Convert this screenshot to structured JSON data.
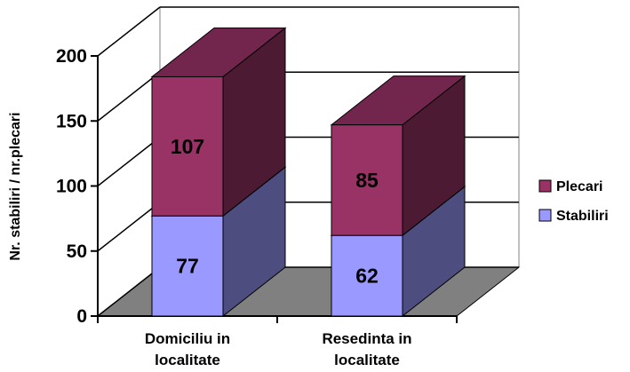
{
  "chart_data": {
    "type": "bar",
    "stacked": true,
    "three_d": true,
    "categories": [
      "Domiciliu in localitate",
      "Resedinta in localitate"
    ],
    "category_lines": [
      [
        "Domiciliu in",
        "localitate"
      ],
      [
        "Resedinta in",
        "localitate"
      ]
    ],
    "series": [
      {
        "name": "Stabiliri",
        "values": [
          77,
          62
        ],
        "color": "#9999ff"
      },
      {
        "name": "Plecari",
        "values": [
          107,
          85
        ],
        "color": "#993366"
      }
    ],
    "ylabel": "Nr. stabiliri / nr.plecari",
    "ylim": [
      0,
      200
    ],
    "yticks": [
      0,
      50,
      100,
      150,
      200
    ],
    "grid": true,
    "legend_position": "right"
  }
}
